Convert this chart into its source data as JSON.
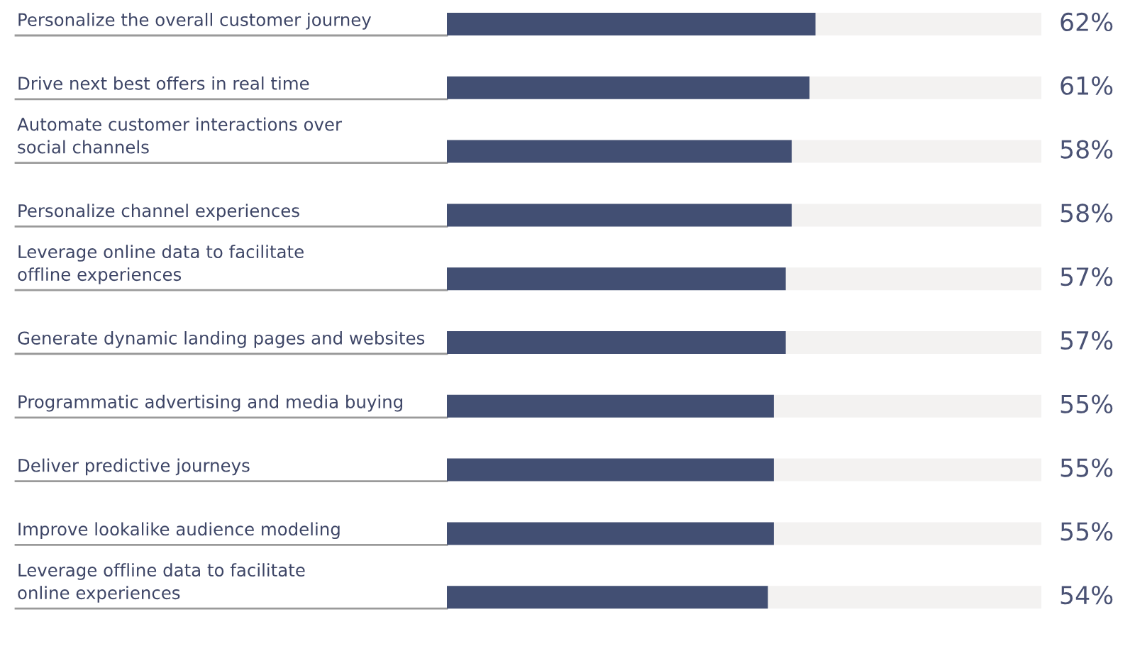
{
  "chart_data": {
    "type": "bar",
    "orientation": "horizontal",
    "categories": [
      "Personalize the overall customer journey",
      "Drive next best offers in real time",
      "Automate customer interactions over\nsocial channels",
      "Personalize channel experiences",
      "Leverage online data to facilitate\noffline experiences",
      "Generate dynamic landing pages and websites",
      "Programmatic advertising and media buying",
      "Deliver predictive journeys",
      "Improve lookalike audience modeling",
      "Leverage offline data to facilitate\nonline experiences"
    ],
    "values": [
      62,
      61,
      58,
      58,
      57,
      57,
      55,
      55,
      55,
      54
    ],
    "color": "#424f73",
    "value_labels": [
      "62%",
      "61%",
      "58%",
      "58%",
      "57%",
      "57%",
      "55%",
      "55%",
      "55%",
      "54%"
    ],
    "xlim": [
      0,
      100
    ],
    "tick_labels": "y"
  }
}
